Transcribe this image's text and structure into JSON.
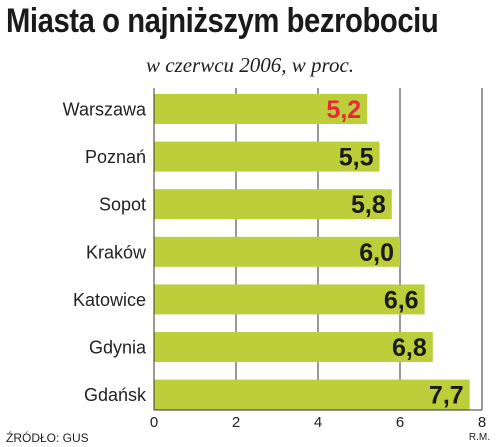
{
  "chart_data": {
    "type": "bar",
    "orientation": "horizontal",
    "title": "Miasta o najniższym bezrobociu",
    "subtitle": "w czerwcu 2006, w proc.",
    "categories": [
      "Warszawa",
      "Poznań",
      "Sopot",
      "Kraków",
      "Katowice",
      "Gdynia",
      "Gdańsk"
    ],
    "values": [
      5.2,
      5.5,
      5.8,
      6.0,
      6.6,
      6.8,
      7.7
    ],
    "value_labels": [
      "5,2",
      "5,5",
      "5,8",
      "6,0",
      "6,6",
      "6,8",
      "7,7"
    ],
    "highlight_index": 0,
    "xlim": [
      0,
      8
    ],
    "xticks": [
      0,
      2,
      4,
      6,
      8
    ],
    "xtick_labels": [
      "0",
      "2",
      "4",
      "6",
      "8"
    ],
    "grid": true,
    "legend": "none",
    "colors": {
      "bar": "#bccf3b",
      "label": "#1a1a1a",
      "highlight_label": "#e8283a",
      "grid": "#333333"
    }
  },
  "footer": {
    "source": "ŹRÓDŁO: GUS",
    "credit": "R.M."
  }
}
